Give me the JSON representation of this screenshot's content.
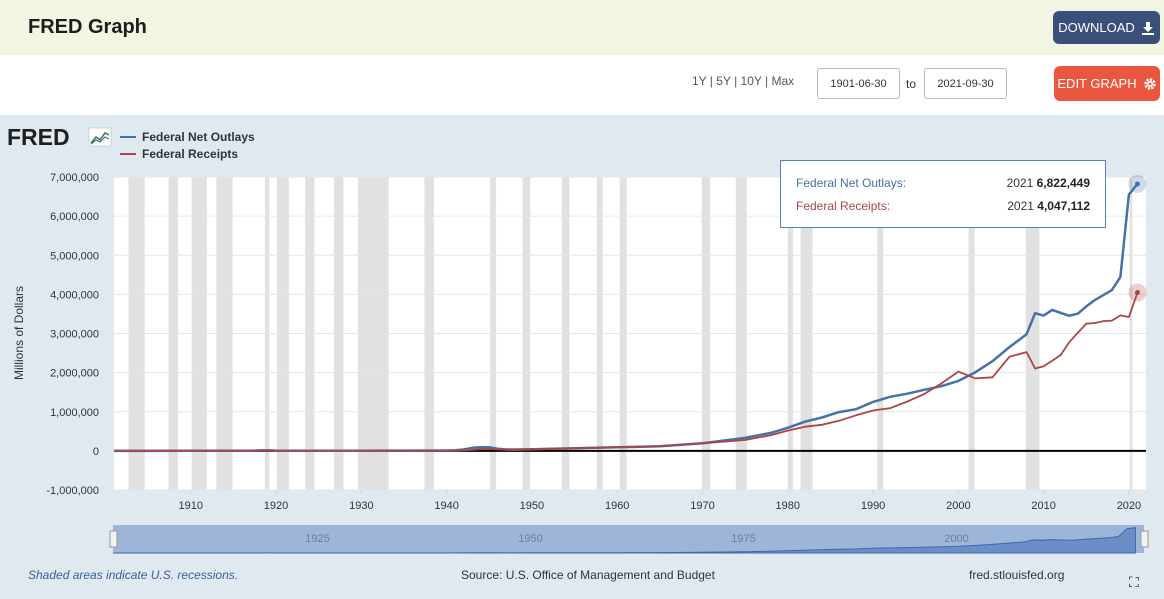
{
  "header": {
    "title": "FRED Graph",
    "download_label": "DOWNLOAD",
    "download_icon": "download-icon"
  },
  "controls": {
    "ranges": [
      "1Y",
      "5Y",
      "10Y",
      "Max"
    ],
    "start_date": "1901-06-30",
    "to_label": "to",
    "end_date": "2021-09-30",
    "edit_label": "EDIT GRAPH",
    "edit_icon": "gear-icon"
  },
  "logo": {
    "text": "FRED"
  },
  "tooltip": {
    "rows": [
      {
        "label": "Federal Net Outlays:",
        "year": "2021",
        "value": "6,822,449",
        "color": "#4572a7"
      },
      {
        "label": "Federal Receipts:",
        "year": "2021",
        "value": "4,047,112",
        "color": "#aa4643"
      }
    ]
  },
  "footer": {
    "note": "Shaded areas indicate U.S. recessions.",
    "source": "Source: U.S. Office of Management and Budget",
    "site": "fred.stlouisfed.org"
  },
  "navigator": {
    "labels": [
      "1925",
      "1950",
      "1975",
      "2000"
    ]
  },
  "chart_data": {
    "type": "line",
    "ylabel": "Millions of Dollars",
    "ylim": [
      -1000000,
      7000000
    ],
    "xlim": [
      1901,
      2022
    ],
    "yticks": [
      -1000000,
      0,
      1000000,
      2000000,
      3000000,
      4000000,
      5000000,
      6000000,
      7000000
    ],
    "ytick_labels": [
      "-1,000,000",
      "0",
      "1,000,000",
      "2,000,000",
      "3,000,000",
      "4,000,000",
      "5,000,000",
      "6,000,000",
      "7,000,000"
    ],
    "xticks": [
      1910,
      1920,
      1930,
      1940,
      1950,
      1960,
      1970,
      1980,
      1990,
      2000,
      2010,
      2020
    ],
    "xtick_labels": [
      "1910",
      "1920",
      "1930",
      "1940",
      "1950",
      "1960",
      "1970",
      "1980",
      "1990",
      "2000",
      "2010",
      "2020"
    ],
    "legend_position": "top-left",
    "recessions": [
      [
        1902.7,
        1904.6
      ],
      [
        1907.4,
        1908.5
      ],
      [
        1910.1,
        1911.9
      ],
      [
        1913.0,
        1914.9
      ],
      [
        1918.7,
        1919.2
      ],
      [
        1920.1,
        1921.5
      ],
      [
        1923.4,
        1924.5
      ],
      [
        1926.8,
        1927.9
      ],
      [
        1929.6,
        1933.2
      ],
      [
        1937.4,
        1938.5
      ],
      [
        1945.1,
        1945.8
      ],
      [
        1948.9,
        1949.8
      ],
      [
        1953.5,
        1954.4
      ],
      [
        1957.6,
        1958.3
      ],
      [
        1960.3,
        1961.1
      ],
      [
        1969.9,
        1970.9
      ],
      [
        1973.9,
        1975.2
      ],
      [
        1980.0,
        1980.6
      ],
      [
        1981.5,
        1982.9
      ],
      [
        1990.5,
        1991.2
      ],
      [
        2001.2,
        2001.9
      ],
      [
        2007.9,
        2009.5
      ],
      [
        2020.1,
        2020.4
      ]
    ],
    "series": [
      {
        "name": "Federal Net Outlays",
        "color": "#4572a7",
        "x": [
          1901,
          1905,
          1910,
          1915,
          1917,
          1918,
          1919,
          1920,
          1922,
          1925,
          1930,
          1935,
          1940,
          1941,
          1942,
          1943,
          1944,
          1945,
          1946,
          1947,
          1948,
          1950,
          1955,
          1960,
          1965,
          1970,
          1975,
          1978,
          1980,
          1982,
          1984,
          1986,
          1988,
          1990,
          1992,
          1994,
          1996,
          1998,
          2000,
          2002,
          2004,
          2006,
          2008,
          2009,
          2010,
          2011,
          2012,
          2013,
          2014,
          2015,
          2016,
          2017,
          2018,
          2019,
          2020,
          2021
        ],
        "y": [
          500,
          600,
          700,
          800,
          2000,
          12700,
          18500,
          6400,
          3300,
          2900,
          3300,
          6400,
          9500,
          13700,
          35100,
          78600,
          91300,
          92700,
          55200,
          34500,
          29800,
          42600,
          68400,
          92200,
          118200,
          195600,
          332300,
          458700,
          590900,
          745700,
          851800,
          990400,
          1064400,
          1253000,
          1381500,
          1461800,
          1560500,
          1652500,
          1789000,
          2010900,
          2292800,
          2655100,
          2982500,
          3517700,
          3457100,
          3603100,
          3526600,
          3454900,
          3506100,
          3691800,
          3852600,
          3981600,
          4109000,
          4447000,
          6551900,
          6822449
        ]
      },
      {
        "name": "Federal Receipts",
        "color": "#aa4643",
        "x": [
          1901,
          1905,
          1910,
          1915,
          1917,
          1918,
          1919,
          1920,
          1922,
          1925,
          1930,
          1935,
          1940,
          1941,
          1942,
          1943,
          1944,
          1945,
          1946,
          1947,
          1948,
          1950,
          1955,
          1960,
          1965,
          1970,
          1975,
          1978,
          1980,
          1982,
          1984,
          1986,
          1988,
          1990,
          1992,
          1994,
          1996,
          1998,
          2000,
          2002,
          2004,
          2006,
          2008,
          2009,
          2010,
          2011,
          2012,
          2013,
          2014,
          2015,
          2016,
          2017,
          2018,
          2019,
          2020,
          2021
        ],
        "y": [
          600,
          600,
          700,
          700,
          1100,
          3600,
          5100,
          6600,
          4000,
          3600,
          4100,
          3600,
          6500,
          8700,
          14600,
          24000,
          43700,
          45200,
          39300,
          38500,
          41600,
          39400,
          65500,
          92500,
          116800,
          192800,
          279100,
          399600,
          517100,
          617800,
          666400,
          769200,
          909200,
          1032000,
          1091200,
          1258600,
          1453100,
          1721700,
          2025200,
          1853100,
          1880100,
          2406900,
          2524000,
          2105000,
          2162700,
          2303500,
          2450000,
          2775100,
          3021500,
          3249900,
          3268000,
          3316200,
          3329900,
          3463400,
          3421200,
          4047112
        ]
      }
    ]
  }
}
